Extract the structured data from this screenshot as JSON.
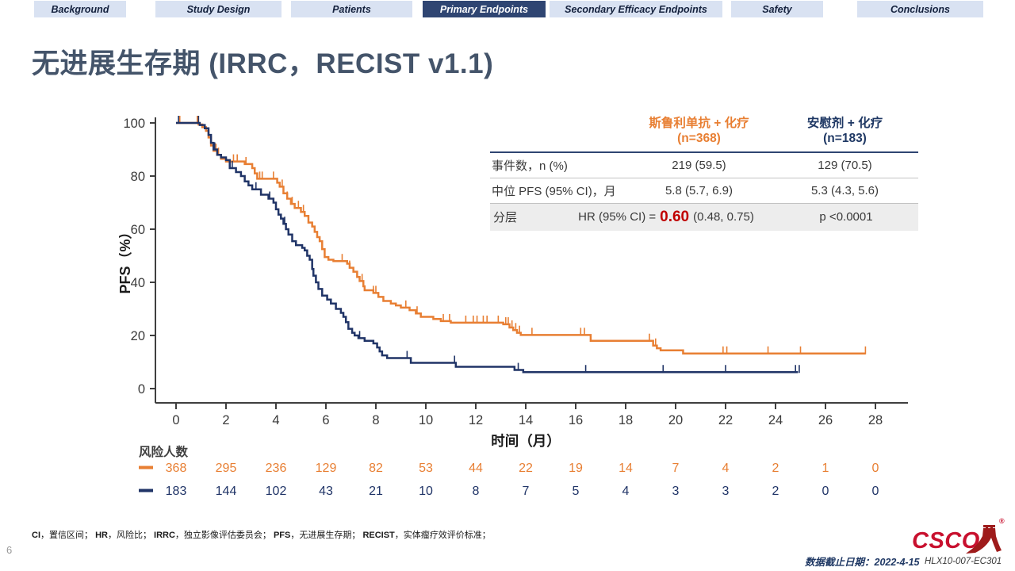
{
  "nav": {
    "tabs": [
      {
        "label": "Background",
        "active": false
      },
      {
        "label": "Study Design",
        "active": false
      },
      {
        "label": "Patients",
        "active": false
      },
      {
        "label": "Primary Endpoints",
        "active": true
      },
      {
        "label": "Secondary Efficacy Endpoints",
        "active": false
      },
      {
        "label": "Safety",
        "active": false
      },
      {
        "label": "Conclusions",
        "active": false
      }
    ]
  },
  "title": "无进展生存期 (IRRC，RECIST v1.1)",
  "stats_table": {
    "col_headers": [
      {
        "line1": "斯鲁利单抗 + 化疗",
        "line2": "(n=368)",
        "color": "#E87F33"
      },
      {
        "line1": "安慰剂 + 化疗",
        "line2": "(n=183)",
        "color": "#1F3864"
      }
    ],
    "rows": [
      {
        "label": "事件数，n (%)",
        "values": [
          "219 (59.5)",
          "129 (70.5)"
        ]
      },
      {
        "label": "中位 PFS (95% CI)，月",
        "values": [
          "5.8 (5.7, 6.9)",
          "5.3 (4.3, 5.6)"
        ]
      }
    ],
    "hr_row": {
      "label": "分层",
      "hr_prefix": "HR (95% CI) =",
      "hr_value": "0.60",
      "hr_ci": "(0.48, 0.75)",
      "p_value": "p <0.0001",
      "hr_color": "#C00000"
    }
  },
  "chart_data": {
    "type": "line",
    "subtype": "kaplan-meier-step",
    "title": "",
    "xlabel": "时间（月）",
    "ylabel": "PFS（%）",
    "xlim": [
      0,
      28
    ],
    "ylim": [
      0,
      100
    ],
    "xticks": [
      0,
      2,
      4,
      6,
      8,
      10,
      12,
      14,
      16,
      18,
      20,
      22,
      24,
      26,
      28
    ],
    "yticks": [
      0,
      20,
      40,
      60,
      80,
      100
    ],
    "grid": false,
    "legend_position": "none",
    "series": [
      {
        "name": "斯鲁利单抗 + 化疗",
        "color": "#E87F33",
        "median_months": 5.8,
        "steps": [
          [
            0,
            100
          ],
          [
            0.9,
            99.4
          ],
          [
            1.05,
            98.4
          ],
          [
            1.2,
            97
          ],
          [
            1.3,
            94.5
          ],
          [
            1.4,
            91.5
          ],
          [
            1.5,
            89.5
          ],
          [
            1.65,
            88
          ],
          [
            1.8,
            86.5
          ],
          [
            2.0,
            85.5
          ],
          [
            2.75,
            84.5
          ],
          [
            3.05,
            83
          ],
          [
            3.15,
            81
          ],
          [
            3.25,
            79
          ],
          [
            4.05,
            77.5
          ],
          [
            4.15,
            76
          ],
          [
            4.3,
            73.5
          ],
          [
            4.45,
            71.5
          ],
          [
            4.6,
            69.5
          ],
          [
            4.75,
            68
          ],
          [
            5.0,
            66.5
          ],
          [
            5.15,
            65
          ],
          [
            5.3,
            62.5
          ],
          [
            5.45,
            61
          ],
          [
            5.55,
            59
          ],
          [
            5.65,
            57
          ],
          [
            5.75,
            55.5
          ],
          [
            5.85,
            52.5
          ],
          [
            5.95,
            49.5
          ],
          [
            6.1,
            48.5
          ],
          [
            6.3,
            48
          ],
          [
            6.85,
            47
          ],
          [
            6.95,
            45.5
          ],
          [
            7.1,
            44
          ],
          [
            7.25,
            42
          ],
          [
            7.35,
            40.5
          ],
          [
            7.5,
            38.5
          ],
          [
            7.55,
            37
          ],
          [
            7.9,
            36
          ],
          [
            8.1,
            34.5
          ],
          [
            8.3,
            33
          ],
          [
            8.6,
            32
          ],
          [
            8.8,
            31.3
          ],
          [
            9.0,
            30.5
          ],
          [
            9.35,
            29.5
          ],
          [
            9.6,
            28.3
          ],
          [
            9.8,
            27
          ],
          [
            10.3,
            26.2
          ],
          [
            10.6,
            25.4
          ],
          [
            11.0,
            24.8
          ],
          [
            13.1,
            24.2
          ],
          [
            13.35,
            23
          ],
          [
            13.5,
            22
          ],
          [
            13.65,
            21
          ],
          [
            13.8,
            20.2
          ],
          [
            16.6,
            18
          ],
          [
            19.1,
            16.2
          ],
          [
            19.25,
            15.2
          ],
          [
            19.4,
            14.4
          ],
          [
            20.3,
            13.2
          ],
          [
            27.6,
            13.2
          ]
        ],
        "censor_months": [
          0.15,
          0.85,
          1.6,
          1.7,
          2.3,
          2.45,
          2.8,
          3.35,
          3.45,
          3.9,
          4.25,
          4.45,
          4.65,
          4.9,
          5.1,
          5.3,
          6.65,
          6.95,
          7.45,
          7.9,
          8.0,
          9.2,
          9.65,
          10.7,
          10.95,
          11.6,
          11.9,
          12.05,
          12.3,
          12.45,
          12.9,
          13.2,
          13.3,
          13.45,
          13.6,
          13.75,
          14.25,
          16.2,
          16.35,
          18.95,
          19.2,
          21.9,
          22.05,
          23.7,
          25.0,
          27.6
        ]
      },
      {
        "name": "安慰剂 + 化疗",
        "color": "#203467",
        "median_months": 5.3,
        "steps": [
          [
            0,
            100
          ],
          [
            0.95,
            99.2
          ],
          [
            1.15,
            98
          ],
          [
            1.3,
            95.5
          ],
          [
            1.4,
            92.5
          ],
          [
            1.5,
            90
          ],
          [
            1.65,
            88
          ],
          [
            1.8,
            87
          ],
          [
            2.0,
            86
          ],
          [
            2.15,
            83
          ],
          [
            2.4,
            81.5
          ],
          [
            2.6,
            80
          ],
          [
            2.75,
            78
          ],
          [
            2.9,
            76.5
          ],
          [
            3.05,
            75
          ],
          [
            3.4,
            73
          ],
          [
            3.7,
            71.5
          ],
          [
            3.9,
            70
          ],
          [
            4.0,
            67.5
          ],
          [
            4.1,
            65.5
          ],
          [
            4.2,
            64
          ],
          [
            4.3,
            62
          ],
          [
            4.4,
            60
          ],
          [
            4.5,
            58
          ],
          [
            4.65,
            55.5
          ],
          [
            4.8,
            54
          ],
          [
            5.05,
            53
          ],
          [
            5.15,
            52
          ],
          [
            5.25,
            50
          ],
          [
            5.35,
            48.5
          ],
          [
            5.45,
            45
          ],
          [
            5.5,
            42.5
          ],
          [
            5.6,
            40
          ],
          [
            5.7,
            37.5
          ],
          [
            5.85,
            35
          ],
          [
            6.05,
            33.5
          ],
          [
            6.2,
            32
          ],
          [
            6.4,
            30
          ],
          [
            6.6,
            28.5
          ],
          [
            6.7,
            27
          ],
          [
            6.8,
            25
          ],
          [
            6.9,
            22.5
          ],
          [
            7.05,
            21
          ],
          [
            7.15,
            20
          ],
          [
            7.3,
            19
          ],
          [
            7.55,
            18
          ],
          [
            7.9,
            17
          ],
          [
            8.05,
            15.5
          ],
          [
            8.15,
            14
          ],
          [
            8.25,
            12.5
          ],
          [
            8.45,
            11.5
          ],
          [
            9.4,
            9.7
          ],
          [
            11.2,
            8.2
          ],
          [
            13.55,
            7
          ],
          [
            13.9,
            6.2
          ],
          [
            24.9,
            6.2
          ]
        ],
        "censor_months": [
          0.1,
          0.9,
          1.55,
          2.25,
          3.2,
          3.75,
          4.35,
          7.35,
          9.25,
          11.15,
          13.7,
          16.4,
          19.5,
          22.0,
          24.8,
          24.95
        ]
      }
    ],
    "risk_table": {
      "label": "风险人数",
      "times": [
        0,
        2,
        4,
        6,
        8,
        10,
        12,
        14,
        16,
        18,
        20,
        22,
        24,
        26,
        28
      ],
      "rows": [
        {
          "name": "斯鲁利单抗 + 化疗",
          "color": "#E87F33",
          "counts": [
            368,
            295,
            236,
            129,
            82,
            53,
            44,
            22,
            19,
            14,
            7,
            4,
            2,
            1,
            0
          ]
        },
        {
          "name": "安慰剂 + 化疗",
          "color": "#203467",
          "counts": [
            183,
            144,
            102,
            43,
            21,
            10,
            8,
            7,
            5,
            4,
            3,
            3,
            2,
            0,
            0
          ]
        }
      ]
    }
  },
  "footnote": {
    "segments": [
      {
        "text": "CI",
        "bold": true
      },
      {
        "text": "，置信区间；  ",
        "bold": false
      },
      {
        "text": "HR",
        "bold": true
      },
      {
        "text": "，风险比；  ",
        "bold": false
      },
      {
        "text": "IRRC",
        "bold": true
      },
      {
        "text": "，独立影像评估委员会；  ",
        "bold": false
      },
      {
        "text": "PFS",
        "bold": true
      },
      {
        "text": "，无进展生存期；  ",
        "bold": false
      },
      {
        "text": "RECIST",
        "bold": true
      },
      {
        "text": "，实体瘤疗效评价标准；",
        "bold": false
      }
    ]
  },
  "footer": {
    "page_number": "6",
    "data_cutoff": "数据截止日期：2022-4-15",
    "study_id": "HLX10-007-EC301",
    "logo_text": "CSCO"
  }
}
